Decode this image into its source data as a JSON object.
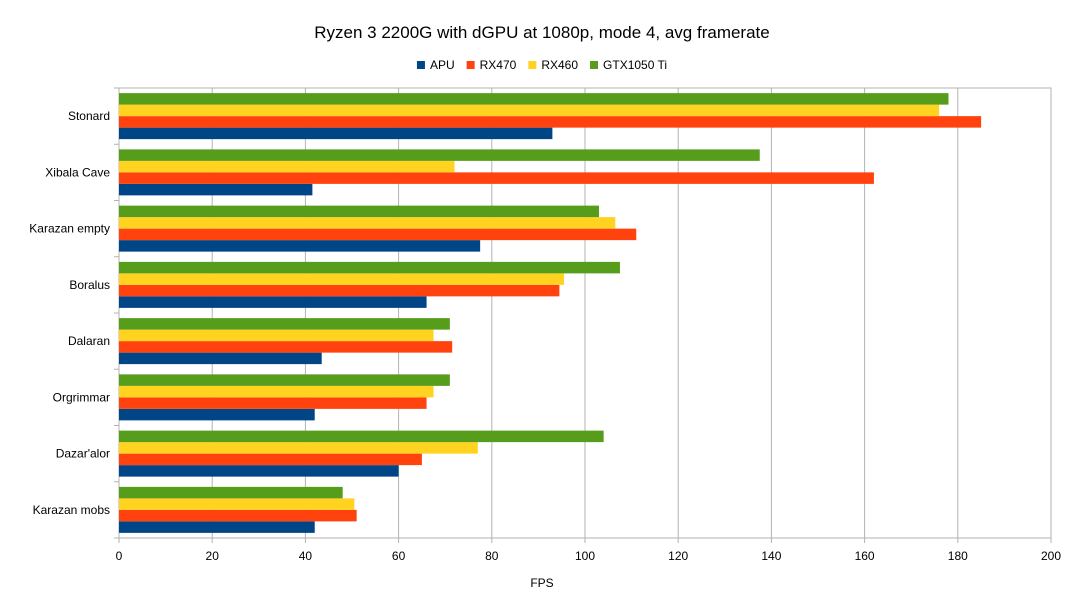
{
  "chart_data": {
    "type": "bar",
    "orientation": "horizontal",
    "title": "Ryzen 3 2200G with dGPU at 1080p, mode 4, avg framerate",
    "xlabel": "FPS",
    "ylabel": "",
    "xlim": [
      0,
      200
    ],
    "x_ticks": [
      "0",
      "20",
      "40",
      "60",
      "80",
      "100",
      "120",
      "140",
      "160",
      "180",
      "200"
    ],
    "grid": true,
    "legend_position": "top",
    "categories": [
      "Stonard",
      "Xibala Cave",
      "Karazan empty",
      "Boralus",
      "Dalaran",
      "Orgrimmar",
      "Dazar'alor",
      "Karazan mobs"
    ],
    "series": [
      {
        "name": "APU",
        "color": "#004586",
        "values": [
          93,
          41.5,
          77.5,
          66,
          43.5,
          42,
          60,
          42
        ]
      },
      {
        "name": "RX470",
        "color": "#ff420e",
        "values": [
          185,
          162,
          111,
          94.5,
          71.5,
          66,
          65,
          51
        ]
      },
      {
        "name": "RX460",
        "color": "#ffd320",
        "values": [
          176,
          72,
          106.5,
          95.5,
          67.5,
          67.5,
          77,
          50.5
        ]
      },
      {
        "name": "GTX1050 Ti",
        "color": "#579d1c",
        "values": [
          178,
          137.5,
          103,
          107.5,
          71,
          71,
          104,
          48
        ]
      }
    ]
  }
}
